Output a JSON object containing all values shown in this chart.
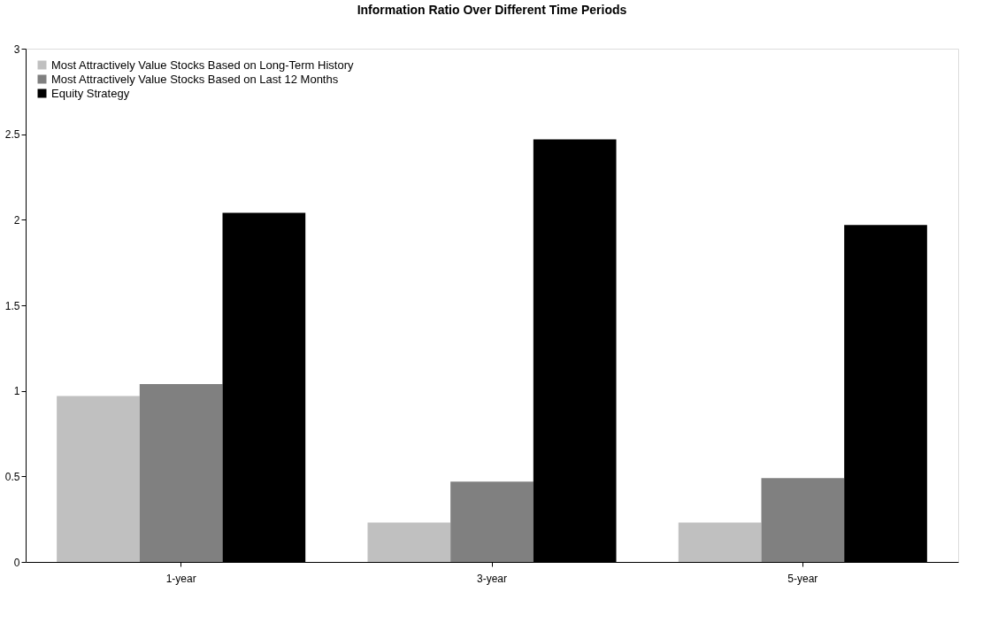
{
  "chart_data": {
    "type": "bar",
    "title": "Information Ratio Over Different Time Periods",
    "categories": [
      "1-year",
      "3-year",
      "5-year"
    ],
    "series": [
      {
        "name": "Most Attractively Value Stocks Based on Long-Term History",
        "color": "#c0c0c0",
        "values": [
          0.97,
          0.23,
          0.23
        ]
      },
      {
        "name": "Most Attractively Value Stocks Based on Last 12 Months",
        "color": "#808080",
        "values": [
          1.04,
          0.47,
          0.49
        ]
      },
      {
        "name": "Equity Strategy",
        "color": "#000000",
        "values": [
          2.04,
          2.47,
          1.97
        ]
      }
    ],
    "ylim": [
      0,
      3
    ],
    "yticks": [
      0,
      0.5,
      1,
      1.5,
      2,
      2.5,
      3
    ],
    "grid": false,
    "legend": "top left"
  }
}
